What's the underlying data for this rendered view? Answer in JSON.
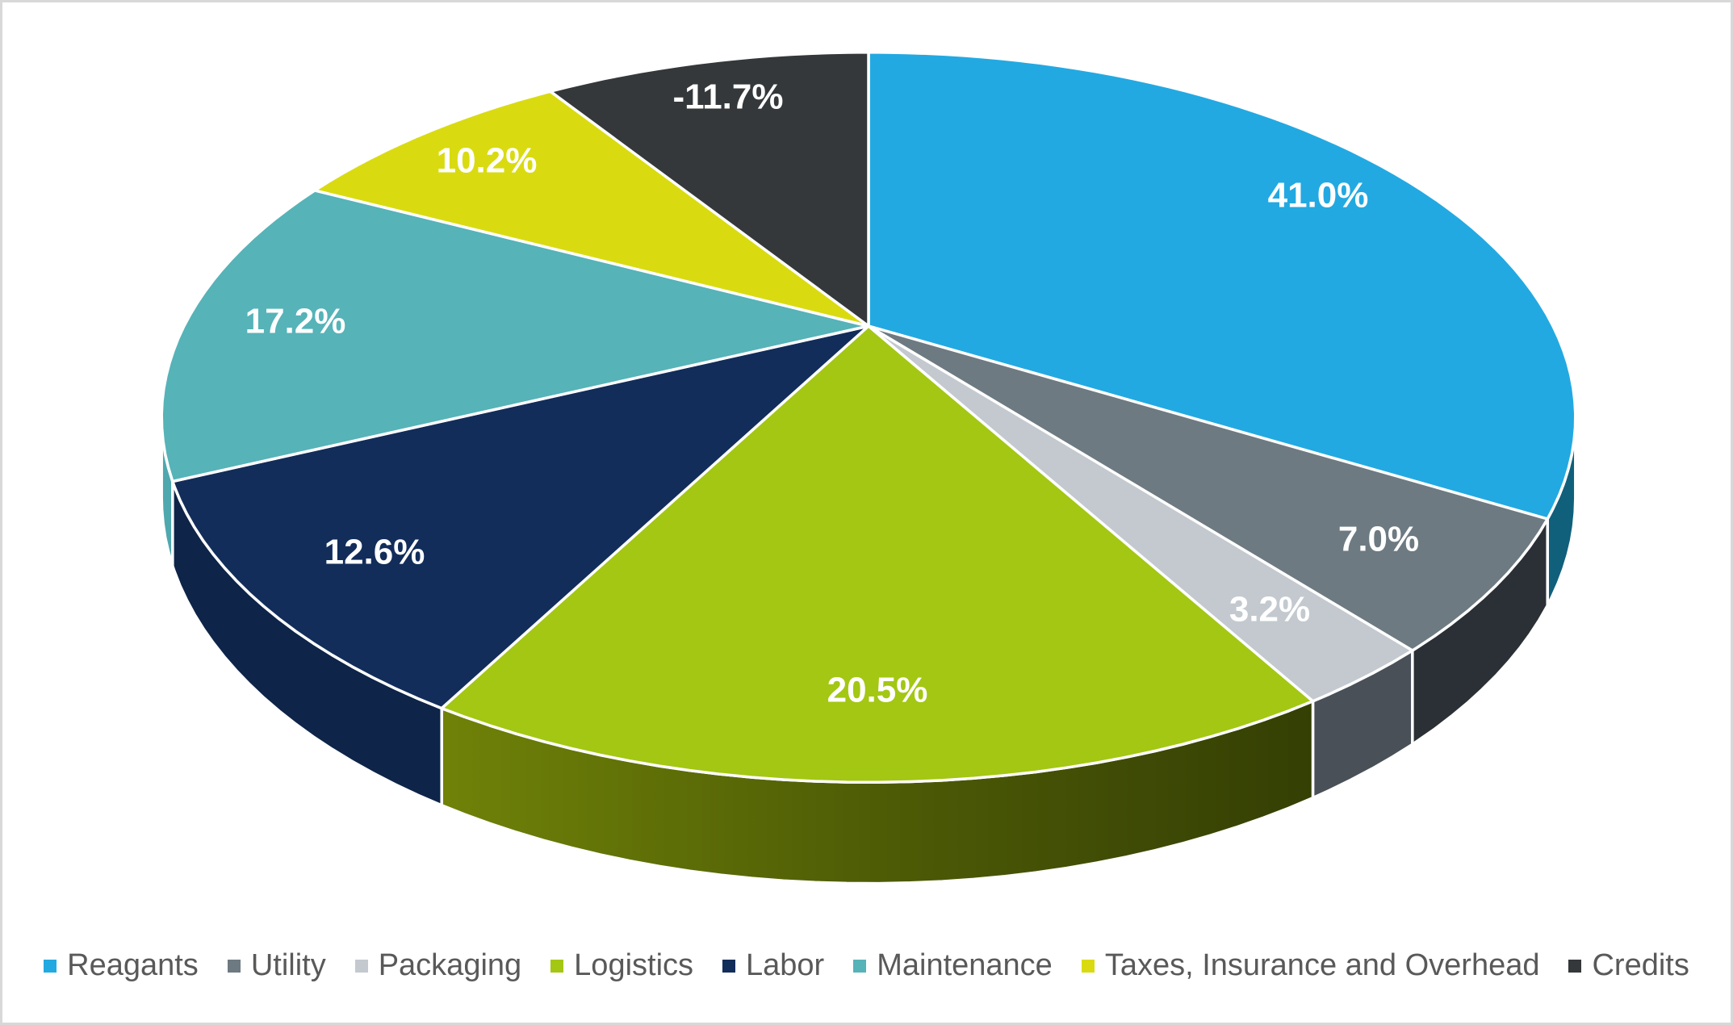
{
  "chart_data": {
    "type": "pie",
    "style": "3d-pie",
    "start_angle_deg": 0,
    "direction": "clockwise",
    "background": "#FFFFFF",
    "frame_border_color": "#D8D8D8",
    "data_label_color": "#FFFFFF",
    "legend": {
      "position": "bottom",
      "text_color": "#595959"
    },
    "slices": [
      {
        "label": "Reagants",
        "value": 41.0,
        "display": "41.0%",
        "color": "#23A9E1",
        "side_color": "#10607B"
      },
      {
        "label": "Utility",
        "value": 7.0,
        "display": "7.0%",
        "color": "#6D7A81",
        "side_color": "#2B3036"
      },
      {
        "label": "Packaging",
        "value": 3.2,
        "display": "3.2%",
        "color": "#C3C9CF",
        "side_color": "#4A5058"
      },
      {
        "label": "Logistics",
        "value": 20.5,
        "display": "20.5%",
        "color": "#A3C713",
        "side_color": "#5A6B07",
        "side_gradient": [
          "#708208",
          "#4E5C06",
          "#343F04"
        ]
      },
      {
        "label": "Labor",
        "value": 12.6,
        "display": "12.6%",
        "color": "#122D5A",
        "side_color": "#0E2449"
      },
      {
        "label": "Maintenance",
        "value": 17.2,
        "display": "17.2%",
        "color": "#56B3B8",
        "side_color": "#4FA8AE"
      },
      {
        "label": "Taxes, Insurance and Overhead",
        "value": 10.2,
        "display": "10.2%",
        "color": "#D9DB10",
        "side_color": "#989B0B"
      },
      {
        "label": "Credits",
        "value": -11.7,
        "display": "-11.7%",
        "color": "#34383A",
        "side_color": "#1E2224"
      }
    ]
  }
}
